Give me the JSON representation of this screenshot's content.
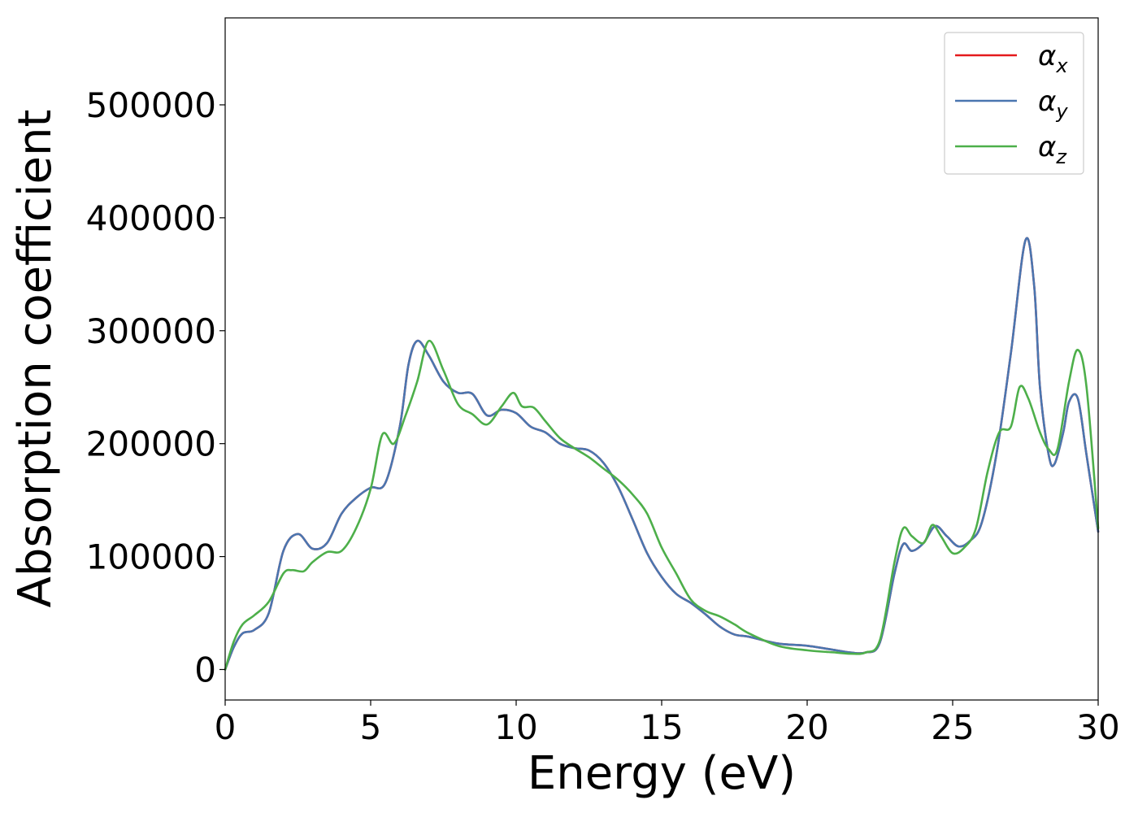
{
  "chart_data": {
    "type": "line",
    "xlabel": "Energy (eV)",
    "ylabel": "Absorption coefficient",
    "xlim": [
      0,
      30
    ],
    "ylim": [
      -27000,
      577000
    ],
    "xticks": [
      0,
      5,
      10,
      15,
      20,
      25,
      30
    ],
    "xtick_labels": [
      "0",
      "5",
      "10",
      "15",
      "20",
      "25",
      "30"
    ],
    "yticks": [
      0,
      100000,
      200000,
      300000,
      400000,
      500000
    ],
    "ytick_labels": [
      "0",
      "100000",
      "200000",
      "300000",
      "400000",
      "500000"
    ],
    "grid": false,
    "legend_position": "top-right",
    "series": [
      {
        "name": "αx",
        "legend_symbol": "α",
        "legend_subscript": "x",
        "color": "#e41a1c",
        "x": [
          0,
          0.3,
          0.6,
          1.0,
          1.5,
          2.0,
          2.5,
          3.0,
          3.5,
          4.0,
          4.5,
          5.0,
          5.5,
          6.0,
          6.3,
          6.6,
          7.0,
          7.5,
          8.0,
          8.5,
          9.0,
          9.5,
          10.0,
          10.5,
          11.0,
          11.5,
          12.0,
          12.5,
          13.0,
          13.5,
          14.0,
          14.5,
          15.0,
          15.5,
          16.0,
          16.5,
          17.0,
          17.5,
          18.0,
          19.0,
          20.0,
          21.0,
          21.5,
          22.0,
          22.5,
          23.0,
          23.3,
          23.6,
          24.0,
          24.4,
          24.8,
          25.2,
          25.6,
          26.0,
          26.5,
          27.0,
          27.5,
          27.8,
          28.0,
          28.3,
          28.5,
          28.8,
          29.0,
          29.3,
          29.6,
          30.0
        ],
        "y": [
          0,
          20000,
          32000,
          35000,
          50000,
          105000,
          120000,
          107000,
          112000,
          138000,
          152000,
          161000,
          165000,
          215000,
          270000,
          291000,
          278000,
          255000,
          245000,
          244000,
          225000,
          230000,
          227000,
          215000,
          210000,
          200000,
          196000,
          194000,
          183000,
          162000,
          133000,
          103000,
          82000,
          67000,
          59000,
          49000,
          38000,
          31000,
          29000,
          23000,
          21000,
          17000,
          15000,
          15000,
          24000,
          85000,
          111000,
          105000,
          112000,
          127000,
          118000,
          109000,
          114000,
          130000,
          190000,
          280000,
          380000,
          340000,
          250000,
          190000,
          182000,
          210000,
          237000,
          240000,
          190000,
          122000
        ]
      },
      {
        "name": "αy",
        "legend_symbol": "α",
        "legend_subscript": "y",
        "color": "#4a76b0",
        "x": [
          0,
          0.3,
          0.6,
          1.0,
          1.5,
          2.0,
          2.5,
          3.0,
          3.5,
          4.0,
          4.5,
          5.0,
          5.5,
          6.0,
          6.3,
          6.6,
          7.0,
          7.5,
          8.0,
          8.5,
          9.0,
          9.5,
          10.0,
          10.5,
          11.0,
          11.5,
          12.0,
          12.5,
          13.0,
          13.5,
          14.0,
          14.5,
          15.0,
          15.5,
          16.0,
          16.5,
          17.0,
          17.5,
          18.0,
          19.0,
          20.0,
          21.0,
          21.5,
          22.0,
          22.5,
          23.0,
          23.3,
          23.6,
          24.0,
          24.4,
          24.8,
          25.2,
          25.6,
          26.0,
          26.5,
          27.0,
          27.5,
          27.8,
          28.0,
          28.3,
          28.5,
          28.8,
          29.0,
          29.3,
          29.6,
          30.0
        ],
        "y": [
          0,
          20000,
          32000,
          35000,
          50000,
          105000,
          120000,
          107000,
          112000,
          138000,
          152000,
          161000,
          165000,
          215000,
          270000,
          291000,
          278000,
          255000,
          245000,
          244000,
          225000,
          230000,
          227000,
          215000,
          210000,
          200000,
          196000,
          194000,
          183000,
          162000,
          133000,
          103000,
          82000,
          67000,
          59000,
          49000,
          38000,
          31000,
          29000,
          23000,
          21000,
          17000,
          15000,
          15000,
          24000,
          85000,
          111000,
          105000,
          112000,
          127000,
          118000,
          109000,
          114000,
          130000,
          190000,
          280000,
          380000,
          340000,
          250000,
          190000,
          182000,
          210000,
          237000,
          240000,
          190000,
          122000
        ]
      },
      {
        "name": "αz",
        "legend_symbol": "α",
        "legend_subscript": "z",
        "color": "#4daf4a",
        "x": [
          0,
          0.3,
          0.6,
          1.0,
          1.5,
          2.0,
          2.3,
          2.7,
          3.0,
          3.5,
          4.0,
          4.5,
          5.0,
          5.4,
          5.8,
          6.2,
          6.6,
          7.0,
          7.5,
          8.0,
          8.5,
          9.0,
          9.5,
          9.9,
          10.2,
          10.6,
          11.0,
          11.5,
          12.0,
          12.5,
          13.0,
          13.5,
          14.0,
          14.5,
          15.0,
          15.5,
          16.0,
          16.5,
          17.0,
          17.5,
          18.0,
          19.0,
          20.0,
          21.0,
          21.5,
          22.0,
          22.5,
          23.0,
          23.3,
          23.6,
          24.0,
          24.3,
          24.6,
          25.0,
          25.4,
          25.8,
          26.2,
          26.6,
          27.0,
          27.3,
          27.6,
          28.0,
          28.3,
          28.6,
          29.0,
          29.3,
          29.6,
          30.0
        ],
        "y": [
          0,
          25000,
          40000,
          48000,
          60000,
          85000,
          88000,
          87000,
          95000,
          104000,
          105000,
          125000,
          160000,
          208000,
          200000,
          225000,
          255000,
          291000,
          265000,
          235000,
          226000,
          217000,
          233000,
          245000,
          233000,
          232000,
          220000,
          205000,
          196000,
          188000,
          178000,
          168000,
          155000,
          138000,
          108000,
          85000,
          62000,
          52000,
          47000,
          40000,
          32000,
          21000,
          17000,
          15000,
          14000,
          15000,
          26000,
          95000,
          125000,
          118000,
          112000,
          128000,
          118000,
          103000,
          108000,
          125000,
          175000,
          210000,
          215000,
          250000,
          240000,
          210000,
          195000,
          195000,
          255000,
          283000,
          250000,
          125000
        ]
      }
    ]
  }
}
